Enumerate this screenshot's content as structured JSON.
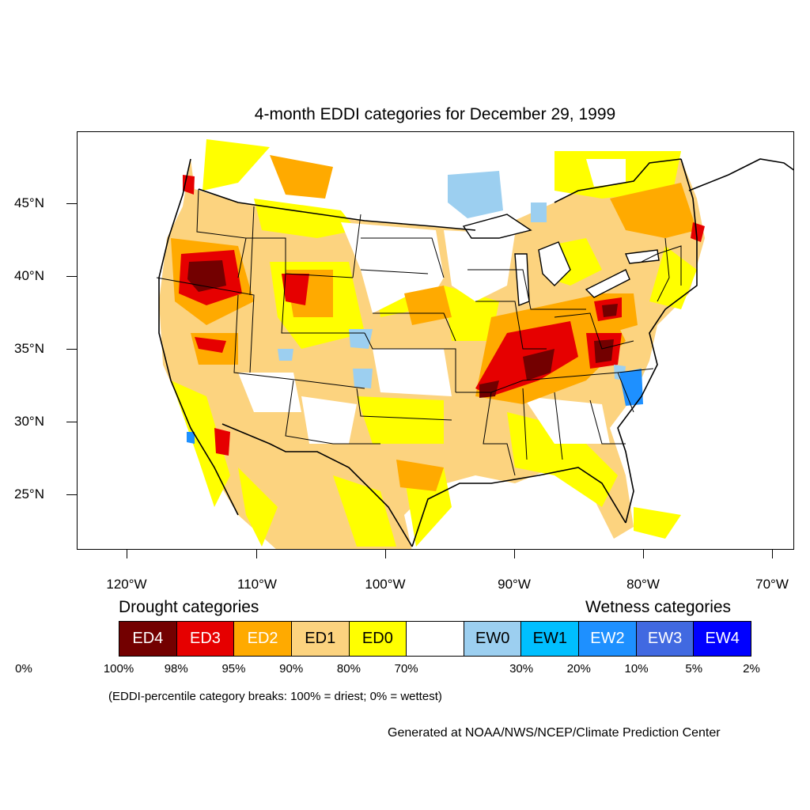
{
  "title": "4-month EDDI categories for December 29, 1999",
  "axes": {
    "lat_labels": [
      "45°N",
      "40°N",
      "35°N",
      "30°N",
      "25°N"
    ],
    "lon_labels": [
      "120°W",
      "110°W",
      "100°W",
      "90°W",
      "80°W",
      "70°W"
    ]
  },
  "legend": {
    "drought_heading": "Drought categories",
    "wetness_heading": "Wetness categories",
    "categories": [
      {
        "label": "ED4",
        "color": "#730000",
        "text_color": "#ffffff"
      },
      {
        "label": "ED3",
        "color": "#e60000",
        "text_color": "#ffffff"
      },
      {
        "label": "ED2",
        "color": "#ffaa00",
        "text_color": "#ffffff"
      },
      {
        "label": "ED1",
        "color": "#fcd37f",
        "text_color": "#000000"
      },
      {
        "label": "ED0",
        "color": "#ffff00",
        "text_color": "#000000"
      },
      {
        "label": "",
        "color": "#ffffff",
        "text_color": "#000000"
      },
      {
        "label": "EW0",
        "color": "#9ccff0",
        "text_color": "#000000"
      },
      {
        "label": "EW1",
        "color": "#00bfff",
        "text_color": "#000000"
      },
      {
        "label": "EW2",
        "color": "#1e90ff",
        "text_color": "#ffffff"
      },
      {
        "label": "EW3",
        "color": "#4169e1",
        "text_color": "#ffffff"
      },
      {
        "label": "EW4",
        "color": "#0000ff",
        "text_color": "#ffffff"
      }
    ],
    "breaks": [
      "100%",
      "98%",
      "95%",
      "90%",
      "80%",
      "70%",
      "30%",
      "20%",
      "10%",
      "5%",
      "2%",
      "0%"
    ]
  },
  "note": "(EDDI-percentile category breaks: 100% = driest; 0% = wettest)",
  "credit": "Generated at NOAA/NWS/NCEP/Climate Prediction Center"
}
